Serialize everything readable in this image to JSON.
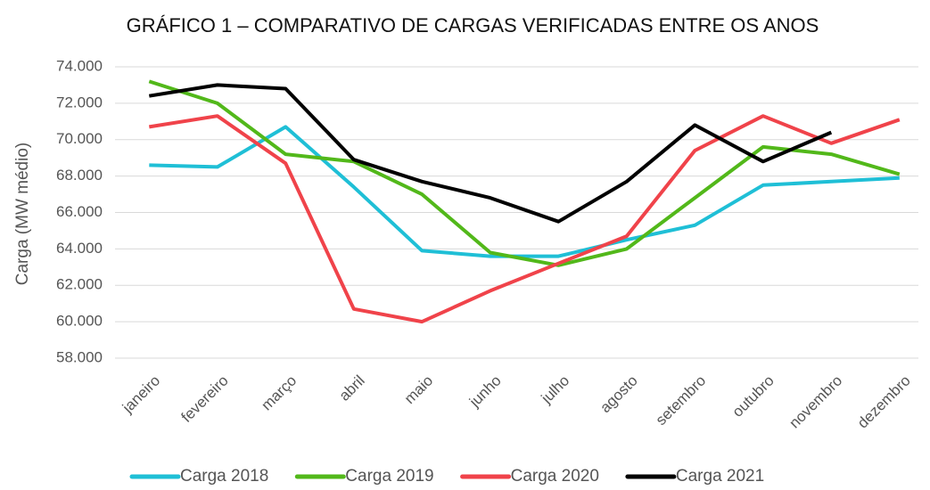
{
  "chart_data": {
    "type": "line",
    "title": "GRÁFICO 1 – COMPARATIVO DE CARGAS VERIFICADAS ENTRE OS ANOS",
    "y_label": "Carga (MW médio)",
    "categories": [
      "janeiro",
      "fevereiro",
      "março",
      "abril",
      "maio",
      "junho",
      "julho",
      "agosto",
      "setembro",
      "outubro",
      "novembro",
      "dezembro"
    ],
    "series": [
      {
        "name": "Carga 2018",
        "color": "#1fbfd6",
        "values": [
          68600,
          68500,
          70700,
          67400,
          63900,
          63600,
          63600,
          64500,
          65300,
          67500,
          67700,
          67900
        ]
      },
      {
        "name": "Carga 2019",
        "color": "#52b81a",
        "values": [
          73200,
          72000,
          69200,
          68800,
          67000,
          63800,
          63100,
          64000,
          66800,
          69600,
          69200,
          68100
        ]
      },
      {
        "name": "Carga 2020",
        "color": "#f0434a",
        "values": [
          70700,
          71300,
          68700,
          60700,
          60000,
          61700,
          63200,
          64700,
          69400,
          71300,
          69800,
          71100
        ]
      },
      {
        "name": "Carga 2021",
        "color": "#000000",
        "values": [
          72400,
          73000,
          72800,
          68900,
          67700,
          66800,
          65500,
          67700,
          70800,
          68800,
          70400,
          null
        ]
      }
    ],
    "ylim": [
      58000,
      74000
    ],
    "yticks": [
      {
        "value": 58000,
        "label": "58.000"
      },
      {
        "value": 60000,
        "label": "60.000"
      },
      {
        "value": 62000,
        "label": "62.000"
      },
      {
        "value": 64000,
        "label": "64.000"
      },
      {
        "value": 66000,
        "label": "66.000"
      },
      {
        "value": 68000,
        "label": "68.000"
      },
      {
        "value": 70000,
        "label": "70.000"
      },
      {
        "value": 72000,
        "label": "72.000"
      },
      {
        "value": 74000,
        "label": "74.000"
      }
    ],
    "grid": true,
    "legend": "bottom"
  }
}
